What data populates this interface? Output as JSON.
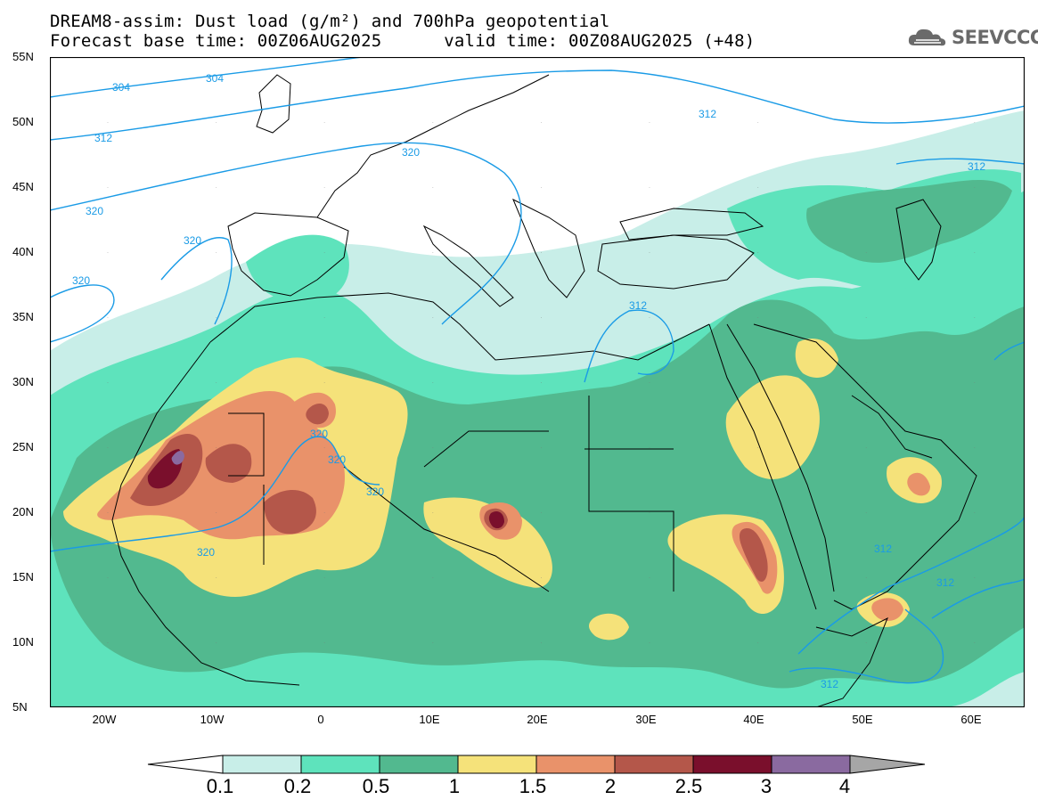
{
  "header": {
    "line1": "DREAM8-assim: Dust load (g/m²) and 700hPa geopotential",
    "line2": "Forecast base time: 00Z06AUG2025      valid time: 00Z08AUG2025 (+48)"
  },
  "logo": {
    "text": "SEEVCCC",
    "icon": "cloud-icon"
  },
  "map": {
    "projection": "lat-lon",
    "lon_range": [
      -25,
      65
    ],
    "lat_range": [
      5,
      55
    ],
    "lat_labels": [
      "55N",
      "50N",
      "45N",
      "40N",
      "35N",
      "30N",
      "25N",
      "20N",
      "15N",
      "10N",
      "5N"
    ],
    "lon_labels": [
      "20W",
      "10W",
      "0",
      "10E",
      "20E",
      "30E",
      "40E",
      "50E",
      "60E"
    ],
    "contour_labels": [
      "304",
      "304",
      "312",
      "312",
      "312",
      "312",
      "312",
      "312",
      "312",
      "320",
      "320",
      "320",
      "320",
      "320",
      "320",
      "320",
      "320"
    ]
  },
  "colorbar": {
    "labels": [
      "0.1",
      "0.2",
      "0.5",
      "1",
      "1.5",
      "2",
      "2.5",
      "3",
      "4"
    ],
    "colors": [
      "#c8eee8",
      "#5ee3bc",
      "#52b98f",
      "#f5e27a",
      "#e9926a",
      "#b4574a",
      "#7a0f2c",
      "#8a6aa0"
    ],
    "under_color": "#ffffff",
    "over_color": "#a6a6a6"
  }
}
